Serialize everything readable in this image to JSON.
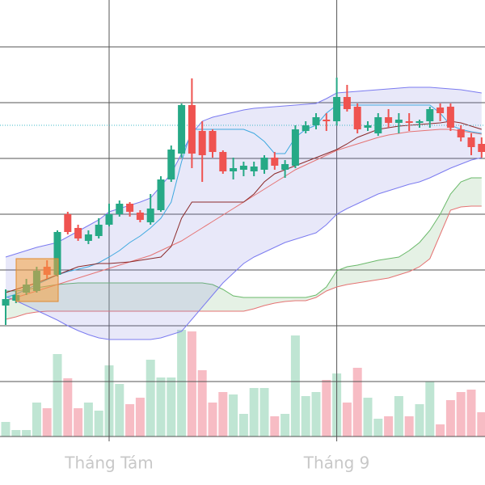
{
  "chart_data": {
    "type": "candlestick",
    "categories": [
      null,
      null,
      null,
      null,
      null,
      null,
      null,
      null,
      null,
      null,
      "Tháng Tám",
      null,
      null,
      null,
      null,
      null,
      null,
      null,
      null,
      null,
      null,
      null,
      null,
      null,
      null,
      null,
      null,
      null,
      null,
      null,
      null,
      null,
      "Tháng 9",
      null,
      null,
      null,
      null,
      null,
      null,
      null,
      null,
      null,
      null,
      null,
      null,
      null,
      null
    ],
    "ylim": [
      60,
      600
    ],
    "yticks": [
      128,
      197,
      266,
      335,
      404,
      473,
      542
    ],
    "grid": true,
    "up_color": "#26a986",
    "down_color": "#ef5350",
    "open": [
      222,
      228,
      238,
      240,
      270,
      260,
      335,
      318,
      302,
      308,
      322,
      335,
      348,
      337,
      325,
      340,
      378,
      410,
      470,
      438,
      438,
      412,
      388,
      390,
      388,
      390,
      405,
      390,
      395,
      438,
      445,
      452,
      450,
      480,
      468,
      442,
      435,
      455,
      448,
      450,
      448,
      450,
      467,
      468,
      440,
      430,
      422
    ],
    "high": [
      242,
      240,
      255,
      270,
      278,
      315,
      338,
      322,
      315,
      330,
      348,
      352,
      350,
      340,
      360,
      382,
      420,
      472,
      503,
      450,
      440,
      414,
      405,
      400,
      400,
      408,
      412,
      402,
      445,
      450,
      460,
      460,
      504,
      495,
      472,
      450,
      460,
      465,
      460,
      460,
      452,
      468,
      472,
      472,
      445,
      435,
      430
    ],
    "low": [
      198,
      225,
      235,
      238,
      255,
      258,
      310,
      302,
      298,
      305,
      320,
      332,
      332,
      325,
      322,
      338,
      375,
      405,
      392,
      375,
      405,
      385,
      378,
      382,
      382,
      385,
      390,
      380,
      392,
      435,
      440,
      438,
      445,
      462,
      435,
      438,
      432,
      442,
      435,
      438,
      442,
      442,
      450,
      438,
      425,
      408,
      405
    ],
    "close": [
      230,
      235,
      248,
      265,
      260,
      313,
      313,
      305,
      310,
      322,
      335,
      348,
      338,
      328,
      342,
      378,
      415,
      470,
      410,
      408,
      412,
      388,
      392,
      395,
      394,
      405,
      395,
      397,
      440,
      445,
      455,
      450,
      480,
      465,
      440,
      445,
      455,
      448,
      452,
      448,
      450,
      465,
      460,
      442,
      430,
      418,
      412
    ],
    "volume": {
      "axis": "y2",
      "up_color": "#bfe5d3",
      "down_color": "#f7bcc4",
      "values": [
        18,
        8,
        8,
        42,
        35,
        102,
        72,
        35,
        42,
        32,
        88,
        65,
        40,
        48,
        95,
        73,
        73,
        132,
        130,
        82,
        42,
        55,
        52,
        28,
        60,
        60,
        25,
        28,
        125,
        50,
        55,
        70,
        78,
        42,
        85,
        48,
        22,
        25,
        50,
        25,
        40,
        68,
        15,
        45,
        55,
        58,
        30
      ]
    },
    "y2lim": [
      0,
      540
    ],
    "reference_line": {
      "value": 445,
      "color": "#3fb8c8"
    },
    "bands": {
      "fill": "rgba(120,120,220,0.17)",
      "line_color": "#7b7bf0",
      "upper": [
        282,
        286,
        290,
        294,
        297,
        300,
        307,
        314,
        321,
        328,
        338,
        342,
        346,
        350,
        355,
        370,
        385,
        410,
        435,
        450,
        455,
        458,
        461,
        464,
        466,
        467,
        468,
        469,
        470,
        471,
        472,
        478,
        485,
        486,
        487,
        488,
        489,
        490,
        491,
        492,
        492,
        492,
        491,
        490,
        489,
        487,
        485
      ],
      "lower": [
        233,
        228,
        222,
        216,
        210,
        204,
        197,
        191,
        186,
        182,
        180,
        180,
        180,
        180,
        180,
        182,
        186,
        190,
        205,
        220,
        235,
        250,
        262,
        274,
        282,
        288,
        294,
        300,
        304,
        308,
        312,
        322,
        335,
        342,
        348,
        354,
        360,
        364,
        368,
        372,
        375,
        380,
        386,
        392,
        397,
        402,
        405
      ]
    },
    "cloud": {
      "fill": "rgba(150,200,150,0.25)",
      "span_a": {
        "color": "#6ab96a",
        "values": [
          240,
          240,
          242,
          244,
          246,
          248,
          249,
          250,
          250,
          250,
          250,
          250,
          250,
          250,
          250,
          250,
          250,
          250,
          250,
          250,
          248,
          242,
          234,
          232,
          232,
          232,
          232,
          232,
          232,
          232,
          235,
          245,
          265,
          270,
          272,
          275,
          278,
          280,
          282,
          290,
          300,
          315,
          335,
          360,
          375,
          380,
          380
        ]
      },
      "span_b": {
        "color": "#e57373",
        "values": [
          205,
          208,
          212,
          214,
          215,
          215,
          215,
          215,
          215,
          215,
          215,
          215,
          215,
          215,
          215,
          215,
          215,
          215,
          215,
          215,
          215,
          215,
          215,
          215,
          218,
          222,
          225,
          227,
          228,
          228,
          232,
          240,
          245,
          248,
          250,
          252,
          254,
          256,
          260,
          264,
          270,
          280,
          310,
          340,
          344,
          345,
          345
        ]
      }
    },
    "series": [
      {
        "color": "#e57373",
        "values": [
          228,
          232,
          236,
          240,
          244,
          248,
          252,
          256,
          260,
          264,
          268,
          272,
          276,
          280,
          284,
          290,
          296,
          302,
          310,
          318,
          326,
          334,
          342,
          350,
          358,
          366,
          374,
          382,
          390,
          396,
          402,
          408,
          414,
          418,
          422,
          426,
          430,
          433,
          435,
          437,
          438,
          439,
          440,
          440,
          438,
          436,
          434
        ]
      },
      {
        "color": "#3fa9e0",
        "values": [
          232,
          236,
          242,
          248,
          254,
          260,
          264,
          267,
          270,
          275,
          282,
          290,
          300,
          308,
          318,
          330,
          350,
          400,
          440,
          440,
          440,
          440,
          440,
          440,
          435,
          425,
          410,
          410,
          430,
          440,
          445,
          460,
          470,
          470,
          470,
          470,
          470,
          470,
          470,
          470,
          470,
          470,
          460,
          445,
          440,
          437,
          435
        ]
      },
      {
        "color": "#8b2a2a",
        "values": [
          238,
          242,
          246,
          250,
          255,
          260,
          265,
          270,
          272,
          274,
          274,
          275,
          276,
          278,
          280,
          282,
          295,
          330,
          350,
          350,
          350,
          350,
          350,
          350,
          360,
          375,
          385,
          390,
          395,
          400,
          405,
          410,
          415,
          422,
          430,
          435,
          440,
          442,
          444,
          445,
          446,
          447,
          448,
          450,
          448,
          444,
          440
        ]
      }
    ]
  }
}
